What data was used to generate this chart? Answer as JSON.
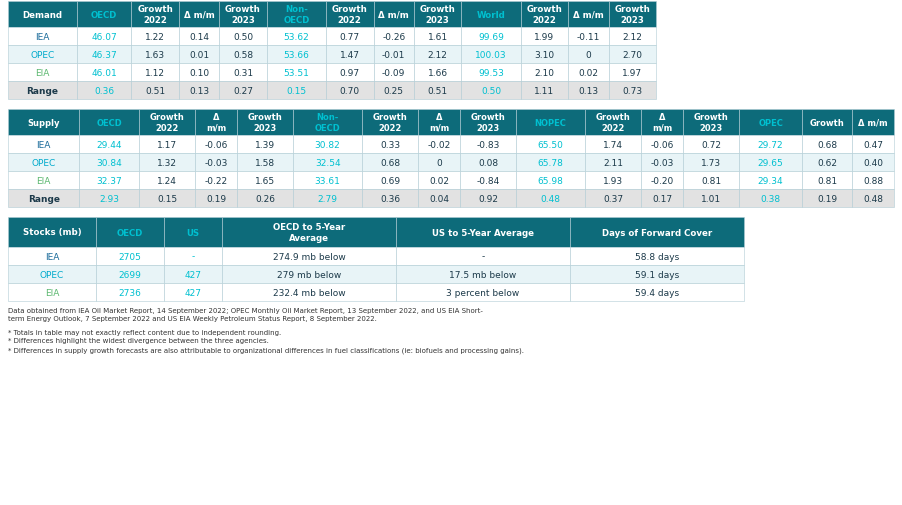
{
  "header_bg": "#0d6b7a",
  "cyan_val": "#00c0d0",
  "green_val": "#5cb85c",
  "white": "#ffffff",
  "row_white": "#ffffff",
  "row_light": "#e8f4f7",
  "row_range": "#e2e2e2",
  "body_color": "#1c3a4a",
  "iea_color": "#1a6b9a",
  "opec_color": "#00aacc",
  "eia_color": "#5cb870",
  "grid_color": "#b0ccd4",
  "demand_headers": [
    "Demand",
    "OECD",
    "Growth\n2022",
    "Δ m/m",
    "Growth\n2023",
    "Non-\nOECD",
    "Growth\n2022",
    "Δ m/m",
    "Growth\n2023",
    "World",
    "Growth\n2022",
    "Δ m/m",
    "Growth\n2023"
  ],
  "demand_col_w": [
    58,
    46,
    40,
    34,
    40,
    50,
    40,
    34,
    40,
    50,
    40,
    34,
    40
  ],
  "demand_rows": [
    [
      "IEA",
      "46.07",
      "1.22",
      "0.14",
      "0.50",
      "53.62",
      "0.77",
      "-0.26",
      "1.61",
      "99.69",
      "1.99",
      "-0.11",
      "2.12"
    ],
    [
      "OPEC",
      "46.37",
      "1.63",
      "0.01",
      "0.58",
      "53.66",
      "1.47",
      "-0.01",
      "2.12",
      "100.03",
      "3.10",
      "0",
      "2.70"
    ],
    [
      "EIA",
      "46.01",
      "1.12",
      "0.10",
      "0.31",
      "53.51",
      "0.97",
      "-0.09",
      "1.66",
      "99.53",
      "2.10",
      "0.02",
      "1.97"
    ],
    [
      "Range",
      "0.36",
      "0.51",
      "0.13",
      "0.27",
      "0.15",
      "0.70",
      "0.25",
      "0.51",
      "0.50",
      "1.11",
      "0.13",
      "0.73"
    ]
  ],
  "demand_cyan_cols": [
    1,
    5,
    9
  ],
  "supply_headers": [
    "Supply",
    "OECD",
    "Growth\n2022",
    "Δ\nm/m",
    "Growth\n2023",
    "Non-\nOECD",
    "Growth\n2022",
    "Δ\nm/m",
    "Growth\n2023",
    "NOPEC",
    "Growth\n2022",
    "Δ\nm/m",
    "Growth\n2023",
    "OPEC",
    "Growth",
    "Δ m/m"
  ],
  "supply_col_w": [
    48,
    40,
    38,
    28,
    38,
    46,
    38,
    28,
    38,
    46,
    38,
    28,
    38,
    42,
    34,
    28
  ],
  "supply_rows": [
    [
      "IEA",
      "29.44",
      "1.17",
      "-0.06",
      "1.39",
      "30.82",
      "0.33",
      "-0.02",
      "-0.83",
      "65.50",
      "1.74",
      "-0.06",
      "0.72",
      "29.72",
      "0.68",
      "0.47"
    ],
    [
      "OPEC",
      "30.84",
      "1.32",
      "-0.03",
      "1.58",
      "32.54",
      "0.68",
      "0",
      "0.08",
      "65.78",
      "2.11",
      "-0.03",
      "1.73",
      "29.65",
      "0.62",
      "0.40"
    ],
    [
      "EIA",
      "32.37",
      "1.24",
      "-0.22",
      "1.65",
      "33.61",
      "0.69",
      "0.02",
      "-0.84",
      "65.98",
      "1.93",
      "-0.20",
      "0.81",
      "29.34",
      "0.81",
      "0.88"
    ],
    [
      "Range",
      "2.93",
      "0.15",
      "0.19",
      "0.26",
      "2.79",
      "0.36",
      "0.04",
      "0.92",
      "0.48",
      "0.37",
      "0.17",
      "1.01",
      "0.38",
      "0.19",
      "0.48"
    ]
  ],
  "supply_cyan_cols": [
    1,
    5,
    9,
    13
  ],
  "stocks_headers": [
    "Stocks (mb)",
    "OECD",
    "US",
    "OECD to 5-Year\nAverage",
    "US to 5-Year Average",
    "Days of Forward Cover"
  ],
  "stocks_col_w": [
    88,
    68,
    58,
    174,
    174,
    174
  ],
  "stocks_rows": [
    [
      "IEA",
      "2705",
      "-",
      "274.9 mb below",
      "-",
      "58.8 days"
    ],
    [
      "OPEC",
      "2699",
      "427",
      "279 mb below",
      "17.5 mb below",
      "59.1 days"
    ],
    [
      "EIA",
      "2736",
      "427",
      "232.4 mb below",
      "3 percent below",
      "59.4 days"
    ]
  ],
  "stocks_cyan_cols": [
    1,
    2
  ],
  "footnote1": "Data obtained from IEA Oil Market Report, 14 September 2022; OPEC Monthly Oil Market Report, 13 September 2022, and US EIA Short-term Energy Outlook, 7 September 2022 and US EIA Weekly Petroleum Status Report, 8 September 2022.",
  "footnote2": "* Totals in table may not exactly reflect content due to independent rounding.\n* Differences highlight the widest divergence between the three agencies.\n* Differences in supply growth forecasts are also attributable to organizational differences in fuel classifications (ie: biofuels and processing gains)."
}
